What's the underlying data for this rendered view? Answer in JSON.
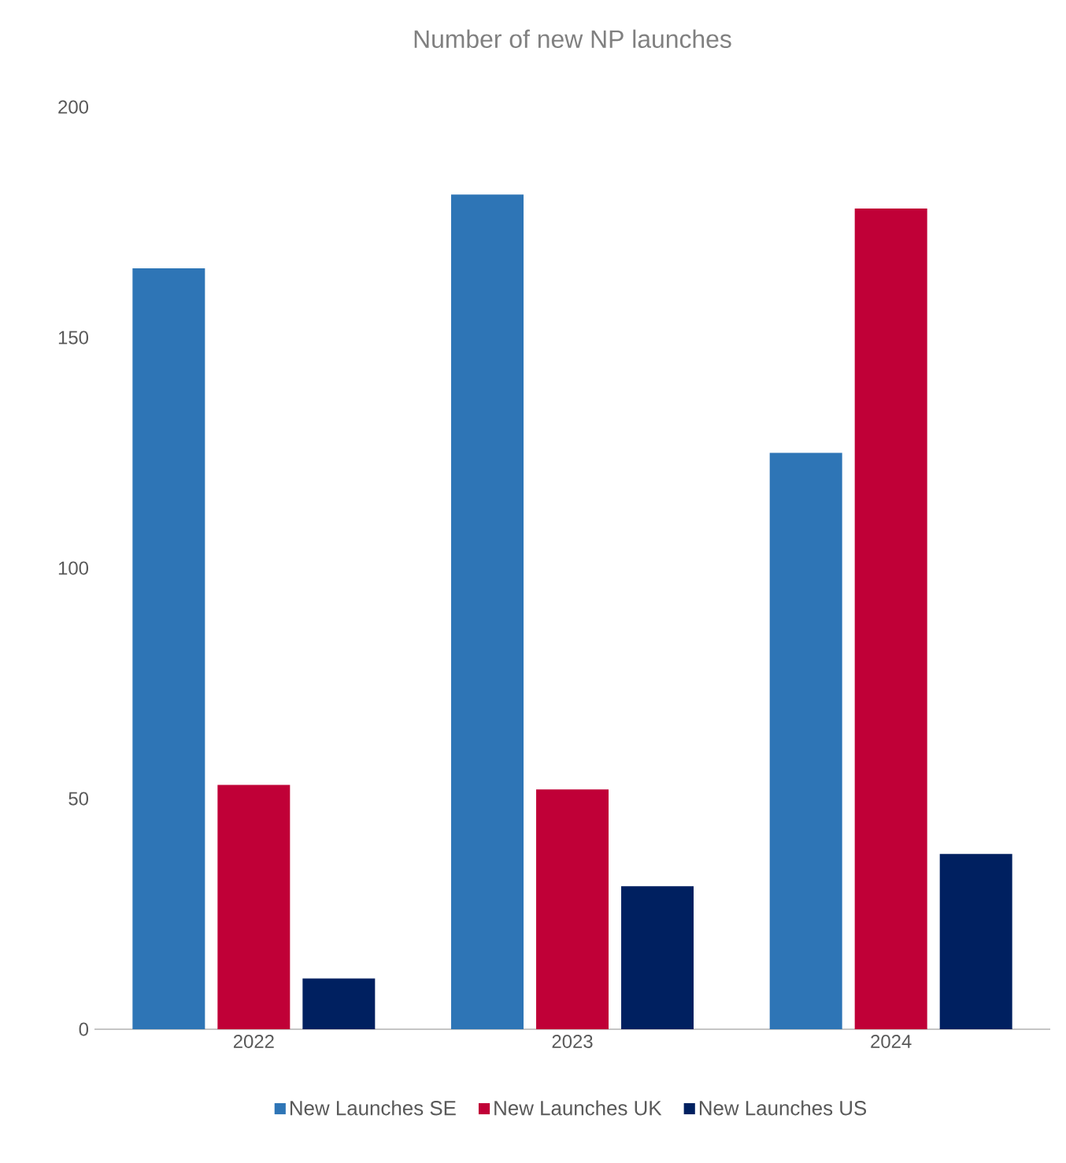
{
  "chart_data": {
    "type": "bar",
    "title": "Number of new NP launches",
    "categories": [
      "2022",
      "2023",
      "2024"
    ],
    "series": [
      {
        "name": "New Launches SE",
        "color": "#2e75b6",
        "values": [
          165,
          181,
          125
        ]
      },
      {
        "name": "New Launches UK",
        "color": "#c00037",
        "values": [
          53,
          52,
          178
        ]
      },
      {
        "name": "New Launches US",
        "color": "#002060",
        "values": [
          11,
          31,
          38
        ]
      }
    ],
    "ylim": [
      0,
      200
    ],
    "yticks": [
      0,
      50,
      100,
      150,
      200
    ],
    "legend": "bottom"
  }
}
